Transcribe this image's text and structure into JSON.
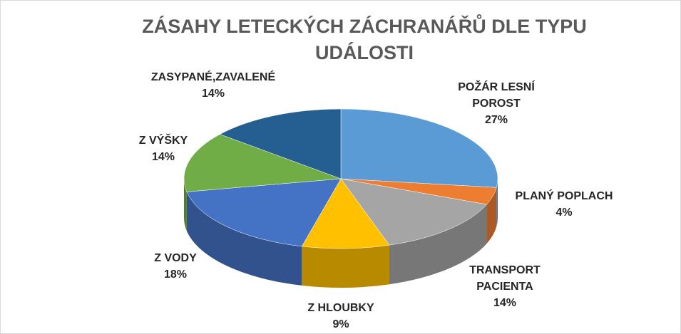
{
  "chart_data": {
    "type": "pie",
    "title": "ZÁSAHY LETECKÝCH ZÁCHRANÁŘŮ DLE TYPU UDÁLOSTI",
    "categories": [
      "POŽÁR LESNÍ POROST",
      "PLANÝ POPLACH",
      "TRANSPORT PACIENTA",
      "Z HLOUBKY",
      "Z VODY",
      "Z VÝŠKY",
      "ZASYPANÉ,ZAVALENÉ"
    ],
    "values": [
      27,
      4,
      14,
      9,
      18,
      14,
      14
    ],
    "value_labels": [
      "27%",
      "4%",
      "14%",
      "9%",
      "18%",
      "14%",
      "14%"
    ],
    "colors": [
      "#5b9bd5",
      "#ed7d31",
      "#a5a5a5",
      "#ffc000",
      "#4472c4",
      "#70ad47",
      "#255e91"
    ]
  }
}
